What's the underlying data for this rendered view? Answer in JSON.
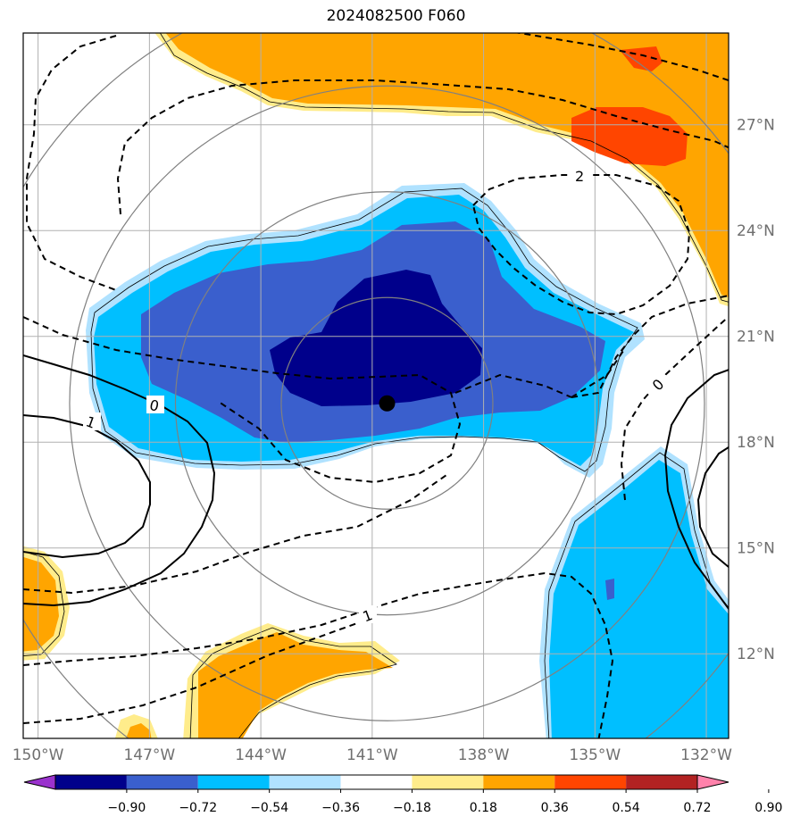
{
  "title": "2024082500 F060",
  "map": {
    "lon_range": [
      -150.4,
      -131.4
    ],
    "lat_range": [
      9.6,
      29.6
    ],
    "lon_ticks": [
      "150°W",
      "147°W",
      "144°W",
      "141°W",
      "138°W",
      "135°W",
      "132°W"
    ],
    "lat_ticks": [
      "27°N",
      "24°N",
      "21°N",
      "18°N",
      "15°N",
      "12°N"
    ],
    "grid": true,
    "storm_center": {
      "lon": -140.6,
      "lat": 19.1
    },
    "range_rings_deg": [
      3,
      6,
      9,
      12
    ]
  },
  "fill_colors": {
    "lt_-0.90": "#9a32cd",
    "-0.90_-0.72": "#00008b",
    "-0.72_-0.54": "#3a5fcd",
    "-0.54_-0.36": "#00bfff",
    "-0.36_-0.18": "#b0e2ff",
    "-0.18_0.18": "#ffffff",
    "0.18_0.36": "#ffec8b",
    "0.36_0.54": "#ffa500",
    "0.54_0.72": "#ff4500",
    "0.72_0.90": "#b22222",
    "gt_0.90": "#ff82ab"
  },
  "colorbar": {
    "labels": [
      "−0.90",
      "−0.72",
      "−0.54",
      "−0.36",
      "−0.18",
      "0.18",
      "0.36",
      "0.54",
      "0.72",
      "0.90"
    ],
    "colors": [
      "#9a32cd",
      "#00008b",
      "#3a5fcd",
      "#00bfff",
      "#b0e2ff",
      "#ffffff",
      "#ffec8b",
      "#ffa500",
      "#ff4500",
      "#b22222",
      "#ff82ab"
    ]
  },
  "contour_labels": [
    {
      "text": "0"
    },
    {
      "text": "1"
    },
    {
      "text": "2"
    },
    {
      "text": "0"
    },
    {
      "text": "1"
    }
  ]
}
